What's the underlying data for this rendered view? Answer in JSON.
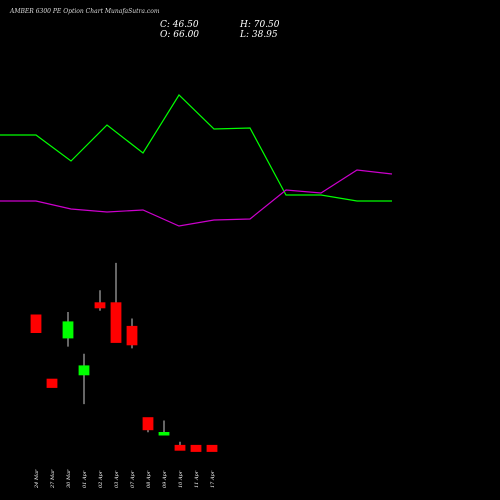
{
  "header": {
    "title": "AMBER 6300 PE Option Chart MunafaSutra.com",
    "close": "C: 46.50",
    "open": "O: 66.00",
    "high": "H: 70.50",
    "low": "L: 38.95"
  },
  "colors": {
    "background": "#000000",
    "bullish": "#00ff00",
    "bearish": "#ff0000",
    "line1": "#00ff00",
    "line2": "#cc00cc",
    "wick": "#ffffff"
  },
  "chart_data": {
    "type": "candlestick",
    "categories": [
      "24 Mar",
      "27 Mar",
      "30 Mar",
      "01 Apr",
      "02 Apr",
      "03 Apr",
      "07 Apr",
      "08 Apr",
      "09 Apr",
      "10 Apr",
      "11 Apr",
      "17 Apr"
    ],
    "candles": [
      {
        "open": 66.3,
        "high": 66.3,
        "low": 50.3,
        "close": 50.3
      },
      {
        "open": 8.2,
        "high": 8.2,
        "low": 0.6,
        "close": 0.6
      },
      {
        "open": 45.3,
        "high": 68.9,
        "low": 37.6,
        "close": 60.0
      },
      {
        "open": 12.0,
        "high": 31.2,
        "low": -14.4,
        "close": 20.2
      },
      {
        "open": 77.3,
        "high": 88.6,
        "low": 70.0,
        "close": 72.6
      },
      {
        "open": 77.3,
        "high": 113.3,
        "low": 41.3,
        "close": 41.3
      },
      {
        "open": 56.0,
        "high": 63.0,
        "low": 36.0,
        "close": 39.2
      },
      {
        "open": -26.6,
        "high": -26.6,
        "low": -39.9,
        "close": -37.6
      },
      {
        "open": -42.4,
        "high": -29.3,
        "low": -42.4,
        "close": -40.0
      },
      {
        "open": -51.7,
        "high": -48.4,
        "low": -56.2,
        "close": -56.2
      },
      {
        "open": -51.7,
        "high": -51.7,
        "low": -57.3,
        "close": -57.3
      },
      {
        "open": -51.7,
        "high": -51.7,
        "low": -57.3,
        "close": -57.3
      }
    ],
    "series": [
      {
        "values": [
          1,
          1,
          0.74,
          1.1,
          0.82,
          1.4,
          1.06,
          1.07,
          0.4,
          0.4,
          0.34,
          0.34
        ]
      },
      {
        "values": [
          0.34,
          0.34,
          0.26,
          0.23,
          0.25,
          0.09,
          0.15,
          0.16,
          0.45,
          0.42,
          0.65,
          0.61
        ]
      }
    ],
    "ylim": [
      -65,
      125
    ]
  }
}
